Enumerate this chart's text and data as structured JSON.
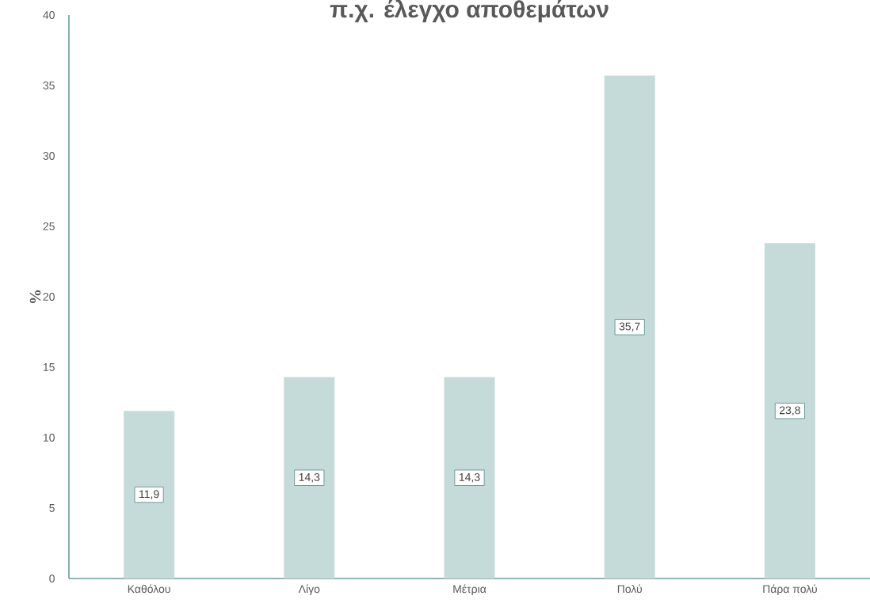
{
  "chart_data": {
    "type": "bar",
    "title": "π.χ. έλεγχο αποθεμάτων",
    "ylabel": "%",
    "categories": [
      "Καθόλου",
      "Λίγο",
      "Μέτρια",
      "Πολύ",
      "Πάρα πολύ"
    ],
    "values": [
      11.9,
      14.3,
      14.3,
      35.7,
      23.8
    ],
    "value_labels": [
      "11,9",
      "14,3",
      "14,3",
      "35,7",
      "23,8"
    ],
    "color": "#c5dbd9",
    "ylim": [
      0,
      40
    ],
    "yticks": [
      0,
      5,
      10,
      15,
      20,
      25,
      30,
      35,
      40
    ]
  }
}
